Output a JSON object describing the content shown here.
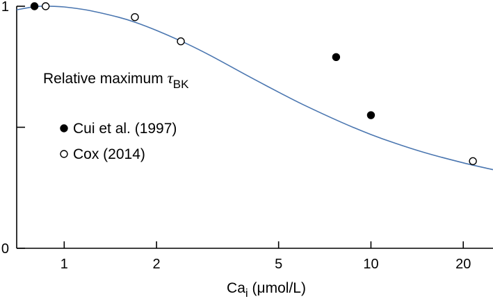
{
  "chart_data": {
    "type": "scatter",
    "title": "Relative maximum",
    "title_symbol": "τ",
    "title_subscript": "BK",
    "xlabel": {
      "main": "Ca",
      "subscript": "i",
      "unit": "(μmol/L)"
    },
    "x_scale": "log",
    "xlim": [
      0.7,
      25
    ],
    "ylim": [
      0,
      1
    ],
    "x_ticks": [
      1,
      2,
      5,
      10,
      20
    ],
    "x_tick_labels": [
      "1",
      "2",
      "5",
      "10",
      "20"
    ],
    "y_ticks": [
      0,
      0.5,
      1
    ],
    "y_tick_labels": [
      "0",
      "",
      "1"
    ],
    "grid": false,
    "legend_position": "left-middle",
    "series": [
      {
        "name": "Cui et al. (1997)",
        "marker": "filled-circle",
        "x": [
          0.8,
          7.7,
          10
        ],
        "y": [
          1.0,
          0.79,
          0.55
        ]
      },
      {
        "name": "Cox (2014)",
        "marker": "open-circle",
        "x": [
          0.87,
          1.7,
          2.4,
          21.5
        ],
        "y": [
          1.0,
          0.955,
          0.855,
          0.36
        ]
      }
    ],
    "fit_curve": {
      "color": "#4a76b0",
      "x": [
        0.7,
        0.8,
        0.9,
        1.0,
        1.2,
        1.5,
        1.7,
        2.0,
        2.5,
        3.0,
        4.0,
        5.0,
        6.0,
        8.0,
        10.0,
        12.0,
        15.0,
        20.0,
        25.0
      ],
      "y": [
        0.985,
        0.998,
        1.0,
        0.997,
        0.983,
        0.955,
        0.934,
        0.9,
        0.846,
        0.796,
        0.71,
        0.645,
        0.594,
        0.521,
        0.47,
        0.434,
        0.395,
        0.353,
        0.325
      ]
    }
  }
}
